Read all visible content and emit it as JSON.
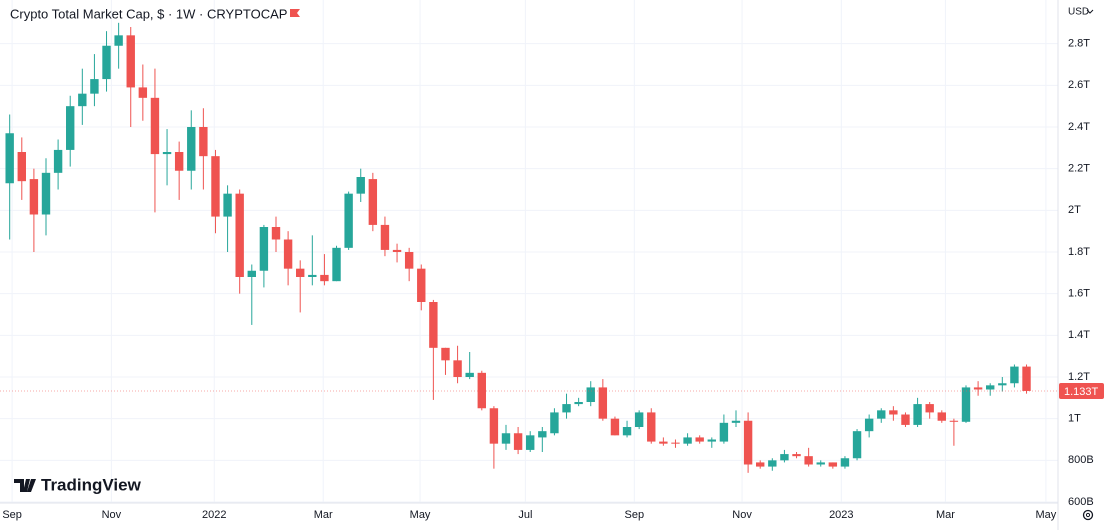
{
  "chart_data": {
    "type": "candlestick",
    "title": "Crypto Total Market Cap, $ · 1W · CRYPTOCAP",
    "currency": "USD",
    "brand": "TradingView",
    "up_color": "#26a69a",
    "down_color": "#ef5350",
    "grid": true,
    "xlim": [
      -0.8,
      86.6
    ],
    "ylim": [
      600,
      3000
    ],
    "yticks": [
      {
        "value": 600,
        "label": "600B"
      },
      {
        "value": 800,
        "label": "800B"
      },
      {
        "value": 1000,
        "label": "1T"
      },
      {
        "value": 1200,
        "label": "1.2T"
      },
      {
        "value": 1400,
        "label": "1.4T"
      },
      {
        "value": 1600,
        "label": "1.6T"
      },
      {
        "value": 1800,
        "label": "1.8T"
      },
      {
        "value": 2000,
        "label": "2T"
      },
      {
        "value": 2200,
        "label": "2.2T"
      },
      {
        "value": 2400,
        "label": "2.4T"
      },
      {
        "value": 2600,
        "label": "2.6T"
      },
      {
        "value": 2800,
        "label": "2.8T"
      }
    ],
    "xticks": [
      {
        "value": 0.2,
        "label": "Sep"
      },
      {
        "value": 8.4,
        "label": "Nov"
      },
      {
        "value": 16.9,
        "label": "2022"
      },
      {
        "value": 25.9,
        "label": "Mar"
      },
      {
        "value": 33.9,
        "label": "May"
      },
      {
        "value": 42.6,
        "label": "Jul"
      },
      {
        "value": 51.6,
        "label": "Sep"
      },
      {
        "value": 60.5,
        "label": "Nov"
      },
      {
        "value": 68.7,
        "label": "2023"
      },
      {
        "value": 77.3,
        "label": "Mar"
      },
      {
        "value": 85.6,
        "label": "May"
      }
    ],
    "open": [
      2130,
      2280,
      2150,
      1980,
      2180,
      2290,
      2500,
      2560,
      2630,
      2790,
      2840,
      2590,
      2540,
      2270,
      2280,
      2190,
      2400,
      2260,
      1970,
      2080,
      1680,
      1710,
      1920,
      1860,
      1720,
      1680,
      1690,
      1660,
      1820,
      2080,
      2150,
      1930,
      1810,
      1800,
      1720,
      1560,
      1340,
      1280,
      1200,
      1220,
      1050,
      880,
      930,
      850,
      910,
      930,
      1030,
      1070,
      1080,
      1150,
      1000,
      920,
      960,
      1030,
      890,
      885,
      880,
      910,
      890,
      890,
      980,
      990,
      790,
      770,
      800,
      830,
      820,
      780,
      790,
      770,
      810,
      940,
      1000,
      1040,
      1020,
      970,
      1070,
      1030,
      990,
      985,
      1150,
      1140,
      1160,
      1170,
      1250
    ],
    "high": [
      2460,
      2350,
      2200,
      2250,
      2340,
      2550,
      2680,
      2750,
      2860,
      2900,
      2880,
      2700,
      2680,
      2390,
      2330,
      2480,
      2490,
      2290,
      2120,
      2100,
      1740,
      1930,
      1970,
      1900,
      1760,
      1880,
      1790,
      1830,
      2090,
      2200,
      2180,
      1970,
      1840,
      1820,
      1740,
      1570,
      1340,
      1350,
      1320,
      1230,
      1060,
      970,
      960,
      940,
      960,
      1050,
      1120,
      1100,
      1180,
      1190,
      1010,
      990,
      1040,
      1050,
      910,
      900,
      930,
      920,
      910,
      1020,
      1040,
      1030,
      800,
      810,
      850,
      840,
      860,
      800,
      790,
      820,
      950,
      1020,
      1050,
      1060,
      1030,
      1100,
      1080,
      1040,
      1000,
      1160,
      1180,
      1170,
      1200,
      1260,
      1260
    ],
    "low": [
      1860,
      2050,
      1800,
      1880,
      2100,
      2210,
      2410,
      2500,
      2570,
      2680,
      2400,
      2430,
      1990,
      2120,
      2050,
      2100,
      2100,
      1890,
      1800,
      1600,
      1450,
      1630,
      1800,
      1640,
      1510,
      1640,
      1640,
      1660,
      1810,
      2040,
      1900,
      1780,
      1750,
      1660,
      1520,
      1090,
      1210,
      1170,
      1190,
      1040,
      760,
      850,
      830,
      840,
      840,
      920,
      1000,
      1060,
      1060,
      990,
      920,
      910,
      950,
      880,
      870,
      860,
      870,
      880,
      860,
      880,
      960,
      740,
      760,
      750,
      790,
      810,
      770,
      770,
      760,
      760,
      800,
      910,
      980,
      990,
      960,
      960,
      1000,
      980,
      870,
      980,
      1110,
      1110,
      1130,
      1150,
      1120
    ],
    "close": [
      2370,
      2140,
      1980,
      2180,
      2290,
      2500,
      2560,
      2630,
      2790,
      2840,
      2590,
      2540,
      2270,
      2280,
      2190,
      2400,
      2260,
      1970,
      2080,
      1680,
      1710,
      1920,
      1860,
      1720,
      1680,
      1690,
      1660,
      1820,
      2080,
      2160,
      1930,
      1810,
      1800,
      1720,
      1560,
      1340,
      1280,
      1200,
      1220,
      1050,
      880,
      930,
      850,
      920,
      940,
      1030,
      1070,
      1080,
      1150,
      1000,
      920,
      960,
      1030,
      890,
      880,
      880,
      910,
      890,
      900,
      980,
      990,
      780,
      770,
      800,
      830,
      820,
      780,
      790,
      770,
      810,
      940,
      1000,
      1040,
      1020,
      970,
      1070,
      1030,
      990,
      985,
      1150,
      1140,
      1160,
      1170,
      1250,
      1133
    ],
    "last_price": {
      "value": 1133,
      "label": "1.133T"
    }
  }
}
